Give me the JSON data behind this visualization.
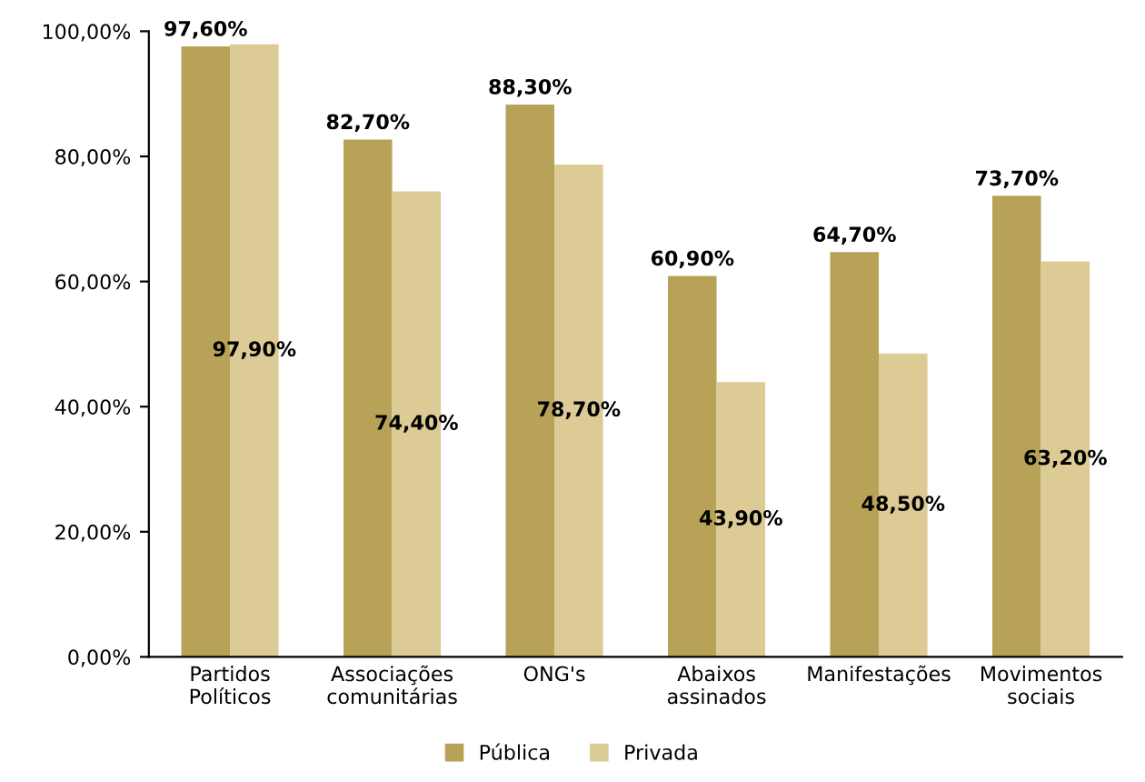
{
  "chart_data": {
    "type": "bar",
    "categories": [
      "Partidos\nPolíticos",
      "Associações\ncomunitárias",
      "ONG's",
      "Abaixos\nassinados",
      "Manifestações",
      "Movimentos\nsociais"
    ],
    "series": [
      {
        "name": "Pública",
        "color": "#b8a258",
        "values": [
          97.6,
          82.7,
          88.3,
          60.9,
          64.7,
          73.7
        ],
        "value_labels": [
          "97,60%",
          "82,70%",
          "88,30%",
          "60,90%",
          "64,70%",
          "73,70%"
        ]
      },
      {
        "name": "Privada",
        "color": "#dccb94",
        "values": [
          97.9,
          74.4,
          78.7,
          43.9,
          48.5,
          63.2
        ],
        "value_labels": [
          "97,90%",
          "74,40%",
          "78,70%",
          "43,90%",
          "48,50%",
          "63,20%"
        ]
      }
    ],
    "ylim": [
      0,
      100
    ],
    "yticks": [
      {
        "value": 0,
        "label": "0,00%"
      },
      {
        "value": 20,
        "label": "20,00%"
      },
      {
        "value": 40,
        "label": "40,00%"
      },
      {
        "value": 60,
        "label": "60,00%"
      },
      {
        "value": 80,
        "label": "80,00%"
      },
      {
        "value": 100,
        "label": "100,00%"
      }
    ],
    "grid": false,
    "legend": "bottom"
  }
}
